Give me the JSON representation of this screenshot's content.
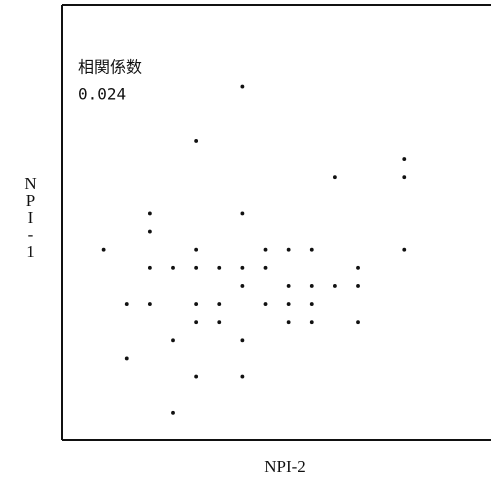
{
  "chart_data": {
    "type": "scatter",
    "annotations": [
      "相関係数",
      "0.024"
    ],
    "xlabel": "NPI-2",
    "ylabel": "NPI-1",
    "color": "#111111",
    "xlim": [
      -0.8,
      17.75
    ],
    "ylim": [
      -0.5,
      23.5
    ],
    "series": [
      {
        "name": null,
        "color": "#111111",
        "x": [
          7,
          5,
          14,
          14,
          11,
          3,
          7,
          3,
          1,
          5,
          8,
          9,
          10,
          14,
          3,
          4,
          5,
          6,
          7,
          8,
          12,
          7,
          9,
          10,
          11,
          12,
          2,
          3,
          5,
          6,
          8,
          9,
          10,
          5,
          6,
          9,
          10,
          12,
          4,
          7,
          2,
          5,
          7,
          4
        ],
        "values": [
          19,
          16,
          15,
          14,
          14,
          12,
          12,
          11,
          10,
          10,
          10,
          10,
          10,
          10,
          9,
          9,
          9,
          9,
          9,
          9,
          9,
          8,
          8,
          8,
          8,
          8,
          7,
          7,
          7,
          7,
          7,
          7,
          7,
          6,
          6,
          6,
          6,
          6,
          5,
          5,
          4,
          3,
          3,
          1
        ]
      }
    ]
  }
}
